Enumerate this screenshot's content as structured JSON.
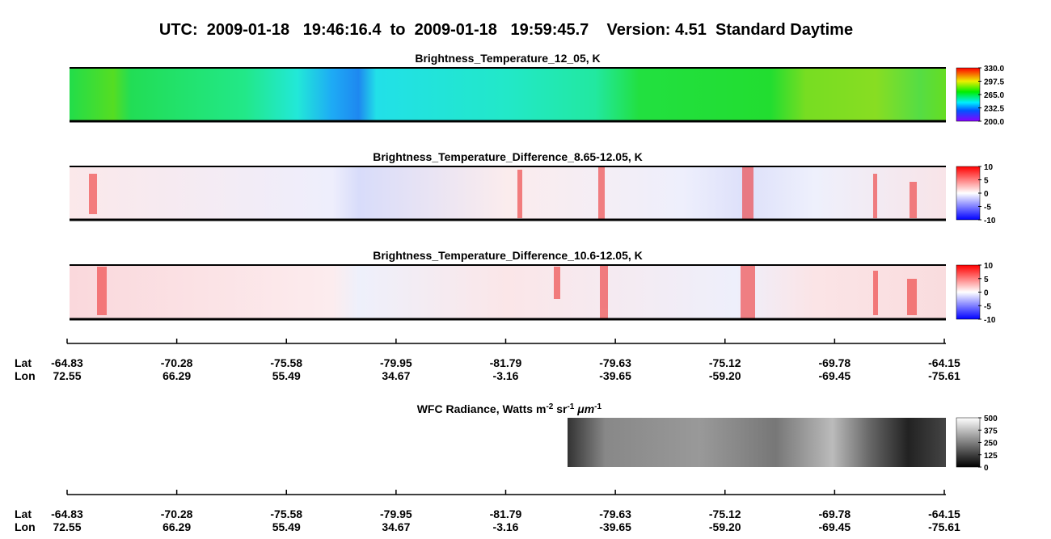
{
  "header": {
    "title": "UTC:  2009-01-18   19:46:16.4  to  2009-01-18   19:59:45.7    Version: 4.51  Standard Daytime"
  },
  "panels": [
    {
      "title": "Brightness_Temperature_12_05, K",
      "colorbar": [
        "200.0",
        "232.5",
        "265.0",
        "297.5",
        "330.0"
      ]
    },
    {
      "title": "Brightness_Temperature_Difference_8.65-12.05, K",
      "colorbar": [
        "-10",
        "-5",
        "0",
        "5",
        "10"
      ]
    },
    {
      "title": "Brightness_Temperature_Difference_10.6-12.05, K",
      "colorbar": [
        "-10",
        "-5",
        "0",
        "5",
        "10"
      ]
    }
  ],
  "wfc": {
    "title": [
      "WFC Radiance, Watts m",
      "-2",
      " sr",
      "-1",
      " μm",
      "-1"
    ],
    "colorbar": [
      "0",
      "125",
      "250",
      "375",
      "500"
    ]
  },
  "axes": [
    {
      "lat_label": "Lat",
      "lon_label": "Lon",
      "lat": [
        "-64.83",
        "-70.28",
        "-75.58",
        "-79.95",
        "-81.79",
        "-79.63",
        "-75.12",
        "-69.78",
        "-64.15"
      ],
      "lon": [
        "72.55",
        "66.29",
        "55.49",
        "34.67",
        "-3.16",
        "-39.65",
        "-59.20",
        "-69.45",
        "-75.61"
      ]
    },
    {
      "lat_label": "Lat",
      "lon_label": "Lon",
      "lat": [
        "-64.83",
        "-70.28",
        "-75.58",
        "-79.95",
        "-81.79",
        "-79.63",
        "-75.12",
        "-69.78",
        "-64.15"
      ],
      "lon": [
        "72.55",
        "66.29",
        "55.49",
        "34.67",
        "-3.16",
        "-39.65",
        "-59.20",
        "-69.45",
        "-75.61"
      ]
    }
  ]
}
